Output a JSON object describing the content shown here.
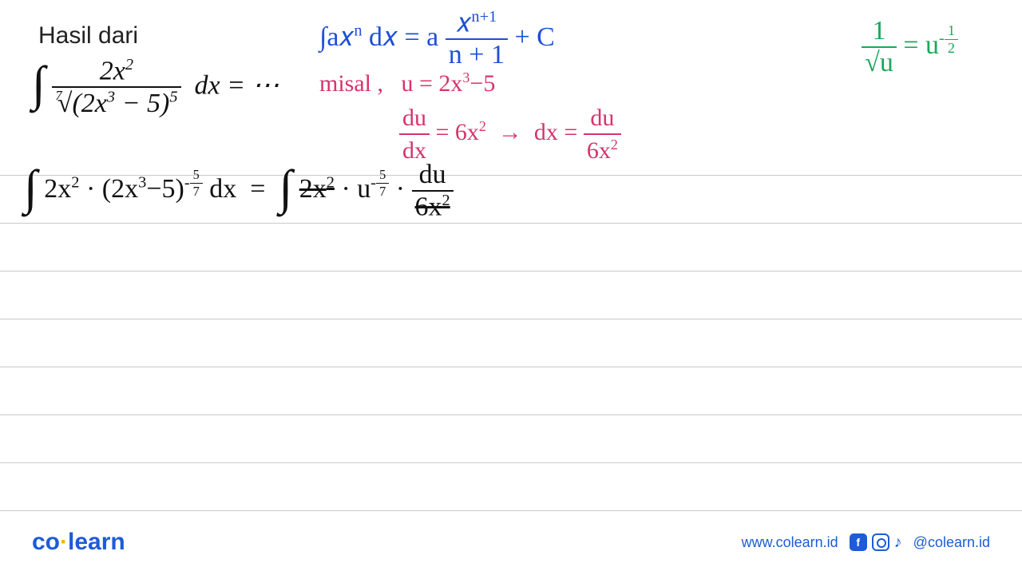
{
  "problem": {
    "label": "Hasil dari",
    "integral_html": "<span class='bigint'>∫</span> <span class='frac'><span class='num'>2<i>x</i><sup>2</sup></span><span class='den'><span class='root7'>7</span>√<span style='border-top:2px solid #111;padding-top:1px'>(2<i>x</i><sup>3</sup> − 5)<sup>5</sup></span></span></span> &nbsp;<i>dx</i> = ⋯"
  },
  "formula_blue": "∫a𝑥<sup>n</sup> d𝑥 = a <span class='frac'><span class='num'>𝑥<sup>n+1</sup></span><span class='den'>n + 1</span></span> + C",
  "green_note": "<span class='frac'><span class='num'>1</span><span class='den'>√u</span></span> = u<sup>-<span class='frac' style='font-size:0.9em'><span class='num' style='border-bottom:1.5px solid currentColor'>1</span><span class='den'>2</span></span></sup>",
  "pink_sub_line1": "misal ,&nbsp;&nbsp; u = 2x<sup>3</sup>−5",
  "pink_sub_line2": "<span class='frac'><span class='num'>du</span><span class='den'>dx</span></span> = 6x<sup>2</sup> &nbsp;→&nbsp; dx = <span class='frac'><span class='num'>du</span><span class='den'>6x<sup>2</sup></span></span>",
  "rewrite_black": "<span class='bigint'>∫</span> 2x<sup>2</sup> · (2x<sup>3</sup>−5)<sup>-<span class='frac' style='font-size:0.8em'><span class='num' style='border-bottom:1.5px solid currentColor'>5</span><span class='den'>7</span></span></sup> dx &nbsp;=&nbsp; <span class='bigint'>∫</span> <span style='text-decoration:line-through'>2x<sup>2</sup></span> · u<sup>-<span class='frac' style='font-size:0.8em'><span class='num' style='border-bottom:1.5px solid currentColor'>5</span><span class='den'>7</span></span></sup> · <span class='frac'><span class='num'>du</span><span class='den' style='text-decoration:line-through'>6x<sup>2</sup></span></span>",
  "footer": {
    "logo_co": "co",
    "logo_learn": "learn",
    "url": "www.colearn.id",
    "handle": "@colearn.id"
  },
  "ruled_line_count": 8,
  "colors": {
    "blue": "#1e4fd6",
    "green": "#1aa85a",
    "pink": "#d6336c",
    "brand_blue": "#1e5bd6",
    "rule": "#c9c9c9"
  }
}
